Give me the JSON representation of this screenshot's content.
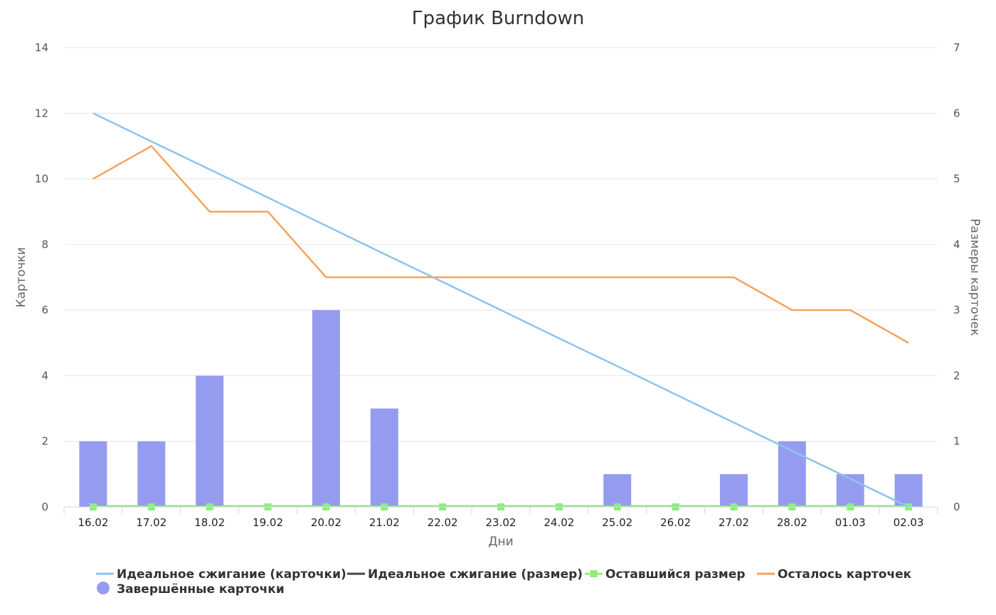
{
  "chart_data": {
    "type": "bar",
    "title": "График Burndown",
    "xlabel": "Дни",
    "ylabel": "Карточки",
    "ylabel_right": "Размеры карточек",
    "ylim": [
      0,
      14
    ],
    "ylim_right": [
      0,
      7
    ],
    "y_ticks": [
      "0",
      "2",
      "4",
      "6",
      "8",
      "10",
      "12",
      "14"
    ],
    "y_right_ticks": [
      "0",
      "1",
      "2",
      "3",
      "4",
      "5",
      "6",
      "7"
    ],
    "grid": true,
    "legend_position": "bottom",
    "categories": [
      "16.02",
      "17.02",
      "18.02",
      "19.02",
      "20.02",
      "21.02",
      "22.02",
      "23.02",
      "24.02",
      "25.02",
      "26.02",
      "27.02",
      "28.02",
      "01.03",
      "02.03"
    ],
    "series": [
      {
        "name": "Идеальное сжигание (карточки)",
        "type": "line",
        "axis": "left",
        "color": "#8ec3ee",
        "values": [
          12,
          11.14,
          10.29,
          9.43,
          8.57,
          7.71,
          6.86,
          6,
          5.14,
          4.29,
          3.43,
          2.57,
          1.71,
          0.86,
          0
        ]
      },
      {
        "name": "Идеальное сжигание (размер)",
        "type": "line",
        "axis": "right",
        "color": "#444444",
        "values": [
          0,
          0,
          0,
          0,
          0,
          0,
          0,
          0,
          0,
          0,
          0,
          0,
          0,
          0,
          0
        ]
      },
      {
        "name": "Оставшийся размер",
        "type": "line",
        "axis": "right",
        "color": "#90ed7d",
        "values": [
          0,
          0,
          0,
          0,
          0,
          0,
          0,
          0,
          0,
          0,
          0,
          0,
          0,
          0,
          0
        ]
      },
      {
        "name": "Осталось карточек",
        "type": "line",
        "axis": "left",
        "color": "#f7a35c",
        "values": [
          10,
          11,
          9,
          9,
          7,
          7,
          7,
          7,
          7,
          7,
          7,
          7,
          6,
          6,
          5
        ]
      },
      {
        "name": "Завершённые карточки",
        "type": "bar",
        "axis": "left",
        "color": "#959cef",
        "values": [
          2,
          2,
          4,
          0,
          6,
          3,
          0,
          0,
          0,
          1,
          0,
          1,
          2,
          1,
          1
        ]
      }
    ]
  }
}
